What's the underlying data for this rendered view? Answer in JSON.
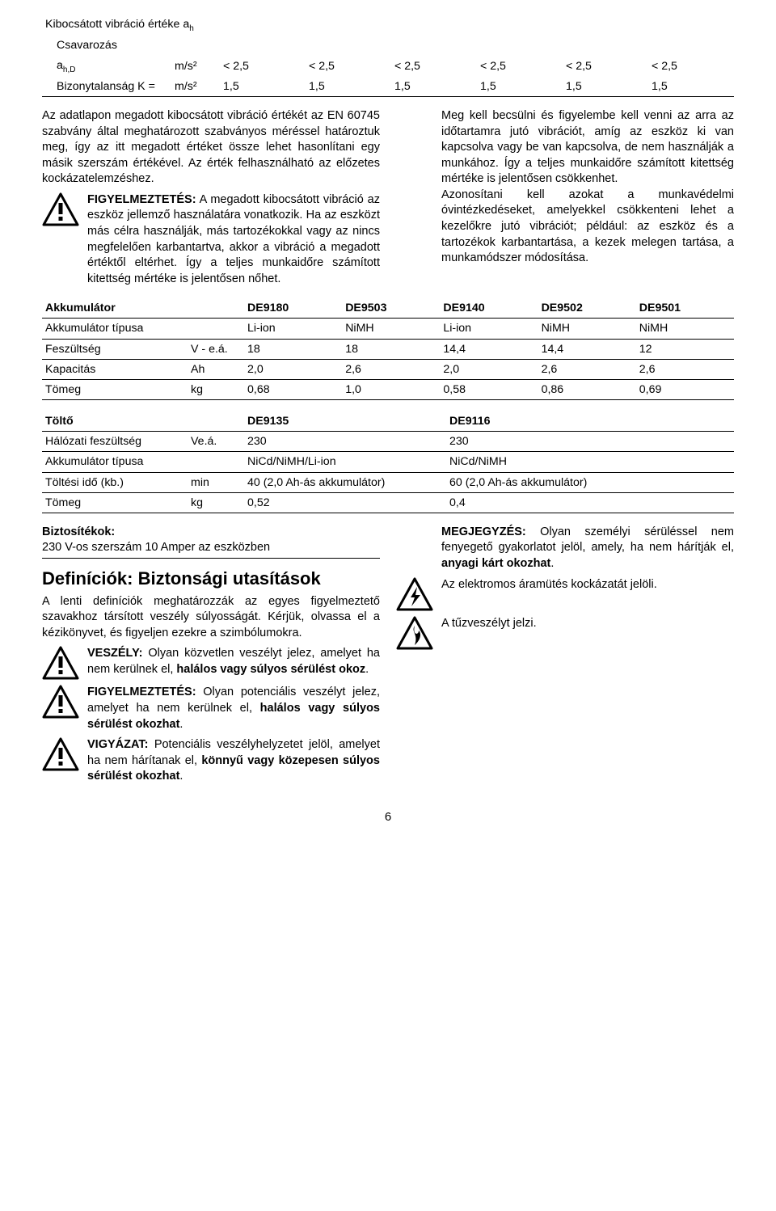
{
  "vib_table": {
    "title": "Kibocsátott vibráció értéke a",
    "title_sub": "h",
    "row1_label": "Csavarozás",
    "row2_label_a": "a",
    "row2_label_sub": "h,D",
    "row2_unit": "m/s²",
    "row2_vals": [
      "< 2,5",
      "< 2,5",
      "< 2,5",
      "< 2,5",
      "< 2,5",
      "< 2,5"
    ],
    "row3_label": "Bizonytalanság K =",
    "row3_unit": "m/s²",
    "row3_vals": [
      "1,5",
      "1,5",
      "1,5",
      "1,5",
      "1,5",
      "1,5"
    ]
  },
  "para_left_1": "Az adatlapon megadott kibocsátott vibráció értékét az EN 60745 szabvány által meghatározott szabványos méréssel határoztuk meg, így az itt megadott értéket össze lehet hasonlítani egy másik szerszám értékével. Az érték felhasználható az előzetes kockázatelemzéshez.",
  "para_left_warn_bold": "FIGYELMEZTETÉS:",
  "para_left_warn": " A megadott kibocsátott vibráció az eszköz jellemző használatára vonatkozik. Ha az eszközt más célra használják, más tartozékokkal vagy az nincs megfelelően karbantartva, akkor a vibráció a megadott értéktől eltérhet. Így a teljes munkaidőre számított kitettség mértéke is jelentősen nőhet.",
  "para_right_1": "Meg kell becsülni és figyelembe kell venni az arra az időtartamra jutó vibrációt, amíg az eszköz ki van kapcsolva vagy be van kapcsolva, de nem használják a munkához. Így a teljes munkaidőre számított kitettség mértéke is jelentősen csökkenhet.",
  "para_right_2": "Azonosítani kell azokat a munkavédelmi óvintézkedéseket, amelyekkel csökkenteni lehet a kezelőkre jutó vibrációt; például: az eszköz és a tartozékok karbantartása, a kezek melegen tartása, a munkamódszer módosítása.",
  "akku_table": {
    "headers": [
      "Akkumulátor",
      "",
      "DE9180",
      "DE9503",
      "DE9140",
      "DE9502",
      "DE9501"
    ],
    "rows": [
      [
        "Akkumulátor típusa",
        "",
        "Li-ion",
        "NiMH",
        "Li-ion",
        "NiMH",
        "NiMH"
      ],
      [
        "Feszültség",
        "V - e.á.",
        "18",
        "18",
        "14,4",
        "14,4",
        "12"
      ],
      [
        "Kapacitás",
        "Ah",
        "2,0",
        "2,6",
        "2,0",
        "2,6",
        "2,6"
      ],
      [
        "Tömeg",
        "kg",
        "0,68",
        "1,0",
        "0,58",
        "0,86",
        "0,69"
      ]
    ]
  },
  "charger_table": {
    "headers": [
      "Töltő",
      "",
      "DE9135",
      "DE9116"
    ],
    "rows": [
      [
        "Hálózati feszültség",
        "Ve.á.",
        "230",
        "230"
      ],
      [
        "Akkumulátor típusa",
        "",
        "NiCd/NiMH/Li-ion",
        "NiCd/NiMH"
      ],
      [
        "Töltési idő (kb.)",
        "min",
        "40 (2,0 Ah-ás akkumulátor)",
        "60 (2,0 Ah-ás akkumulátor)"
      ],
      [
        "Tömeg",
        "kg",
        "0,52",
        "0,4"
      ]
    ]
  },
  "fuse_heading": "Biztosítékok:",
  "fuse_line": "230 V-os szerszám 10 Amper az eszközben",
  "defs_heading": "Definíciók: Biztonsági utasítások",
  "defs_para": "A lenti definíciók meghatározzák az egyes figyelmeztető szavakhoz társított veszély súlyosságát. Kérjük, olvassa el a kézikönyvet, és figyeljen ezekre a szimbólumokra.",
  "danger_bold": "VESZÉLY:",
  "danger_text": " Olyan közvetlen veszélyt jelez, amelyet ha nem kerülnek el, ",
  "danger_text_bold": "halálos vagy súlyos sérülést okoz",
  "warn_bold": "FIGYELMEZTETÉS:",
  "warn_text_a": " Olyan potenciális veszélyt jelez, amelyet ha nem kerülnek el, ",
  "warn_text_bold": "halálos vagy súlyos sérülést okozhat",
  "caution_bold": "VIGYÁZAT:",
  "caution_text_a": " Potenciális veszélyhelyzetet jelöl, amelyet ha nem hárítanak el, ",
  "caution_text_bold": "könnyű vagy közepesen súlyos sérülést okozhat",
  "note_bold": "MEGJEGYZÉS:",
  "note_text_a": " Olyan személyi sérüléssel nem fenyegető gyakorlatot jelöl, amely, ha nem hárítják el, ",
  "note_text_bold": "anyagi kárt okozhat",
  "shock_text": "Az elektromos áramütés kockázatát jelöli.",
  "fire_text": "A tűzveszélyt jelzi.",
  "page_number": "6",
  "icons": {
    "triangle_stroke": "#000",
    "triangle_fill": "#fff",
    "exclaim_fill": "#000"
  }
}
